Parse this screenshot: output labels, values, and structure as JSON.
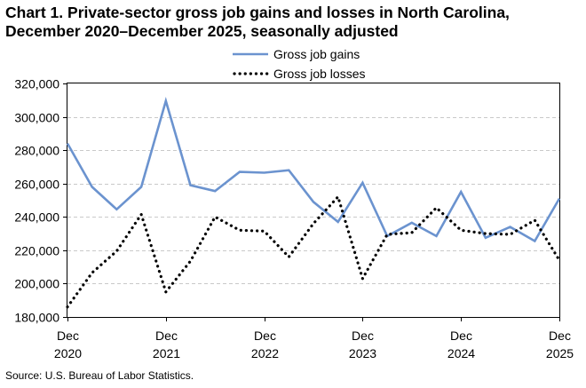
{
  "chart_data": {
    "type": "line",
    "title_line1": "Chart 1. Private-sector gross job gains and losses in North Carolina,",
    "title_line2": "December 2020–December 2025, seasonally adjusted",
    "source": "Source: U.S. Bureau of Labor Statistics.",
    "ylim": [
      180000,
      320000
    ],
    "yticks": [
      {
        "value": 180000,
        "label": "180,000"
      },
      {
        "value": 200000,
        "label": "200,000"
      },
      {
        "value": 220000,
        "label": "220,000"
      },
      {
        "value": 240000,
        "label": "240,000"
      },
      {
        "value": 260000,
        "label": "260,000"
      },
      {
        "value": 280000,
        "label": "280,000"
      },
      {
        "value": 300000,
        "label": "300,000"
      },
      {
        "value": 320000,
        "label": "320,000"
      }
    ],
    "x": [
      "Dec 2020",
      "Mar 2021",
      "Jun 2021",
      "Sep 2021",
      "Dec 2021",
      "Mar 2022",
      "Jun 2022",
      "Sep 2022",
      "Dec 2022",
      "Mar 2023",
      "Jun 2023",
      "Sep 2023",
      "Dec 2023",
      "Mar 2024",
      "Jun 2024",
      "Sep 2024",
      "Dec 2024",
      "Mar 2025",
      "Jun 2025",
      "Sep 2025",
      "Dec 2025"
    ],
    "xticks": [
      {
        "index": 0,
        "month": "Dec",
        "year": "2020"
      },
      {
        "index": 4,
        "month": "Dec",
        "year": "2021"
      },
      {
        "index": 8,
        "month": "Dec",
        "year": "2022"
      },
      {
        "index": 12,
        "month": "Dec",
        "year": "2023"
      },
      {
        "index": 16,
        "month": "Dec",
        "year": "2024"
      },
      {
        "index": 20,
        "month": "Dec",
        "year": "2025"
      }
    ],
    "legend_position": "top",
    "grid": true,
    "series": [
      {
        "name": "Gross job gains",
        "color": "#6b93cf",
        "style": "solid",
        "values": [
          284000,
          258000,
          244500,
          258000,
          309500,
          259000,
          255500,
          267000,
          266500,
          268000,
          249000,
          237000,
          260500,
          228500,
          236500,
          228500,
          255000,
          227500,
          234000,
          225500,
          251000
        ]
      },
      {
        "name": "Gross job losses",
        "color": "#000000",
        "style": "dotted",
        "values": [
          186000,
          206500,
          219500,
          241500,
          195000,
          213500,
          240000,
          232000,
          231500,
          216000,
          236000,
          252000,
          203000,
          229500,
          230500,
          245500,
          232000,
          230000,
          229500,
          238000,
          214000
        ]
      }
    ]
  }
}
